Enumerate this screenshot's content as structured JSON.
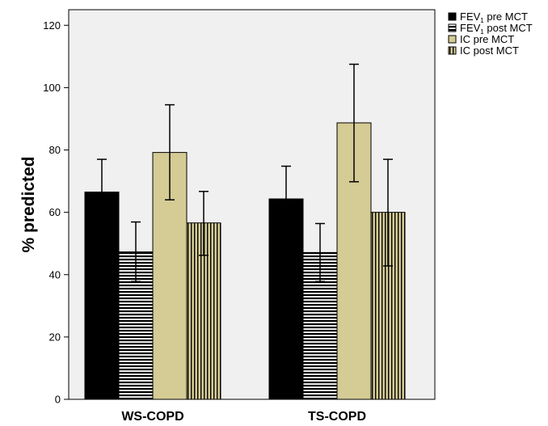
{
  "chart_data": {
    "type": "bar",
    "title": "",
    "xlabel": "",
    "ylabel": "% predicted",
    "ylim": [
      0,
      125
    ],
    "yticks": [
      0,
      20,
      40,
      60,
      80,
      100,
      120
    ],
    "categories": [
      "WS-COPD",
      "TS-COPD"
    ],
    "grid": false,
    "legend_position": "top-right outside",
    "series": [
      {
        "name": "FEV1 pre MCT",
        "name_main": "FEV",
        "name_sub": "1",
        "name_rest": " pre MCT",
        "pattern": "solid",
        "color": "#000000",
        "values": [
          66.5,
          64.3
        ],
        "error_low": [
          56.2,
          54.2
        ],
        "error_high": [
          77.0,
          74.8
        ]
      },
      {
        "name": "FEV1 post MCT",
        "name_main": "FEV",
        "name_sub": "1",
        "name_rest": " post MCT",
        "pattern": "horizontal-stripes",
        "color": "#000000",
        "values": [
          47.3,
          47.1
        ],
        "error_low": [
          37.8,
          37.8
        ],
        "error_high": [
          56.9,
          56.4
        ]
      },
      {
        "name": "IC pre MCT",
        "name_main": "IC pre MCT",
        "name_sub": "",
        "name_rest": "",
        "pattern": "solid",
        "color": "#d4cb95",
        "values": [
          79.2,
          88.7
        ],
        "error_low": [
          64.0,
          69.8
        ],
        "error_high": [
          94.5,
          107.5
        ]
      },
      {
        "name": "IC post MCT",
        "name_main": "IC post MCT",
        "name_sub": "",
        "name_rest": "",
        "pattern": "vertical-stripes",
        "color": "#d4cb95",
        "values": [
          56.6,
          60.0
        ],
        "error_low": [
          46.2,
          42.8
        ],
        "error_high": [
          66.7,
          77.0
        ]
      }
    ]
  },
  "colors": {
    "plot_background": "#f0f0f0",
    "ic_fill": "#d4cb95",
    "fev_fill": "#000000"
  }
}
